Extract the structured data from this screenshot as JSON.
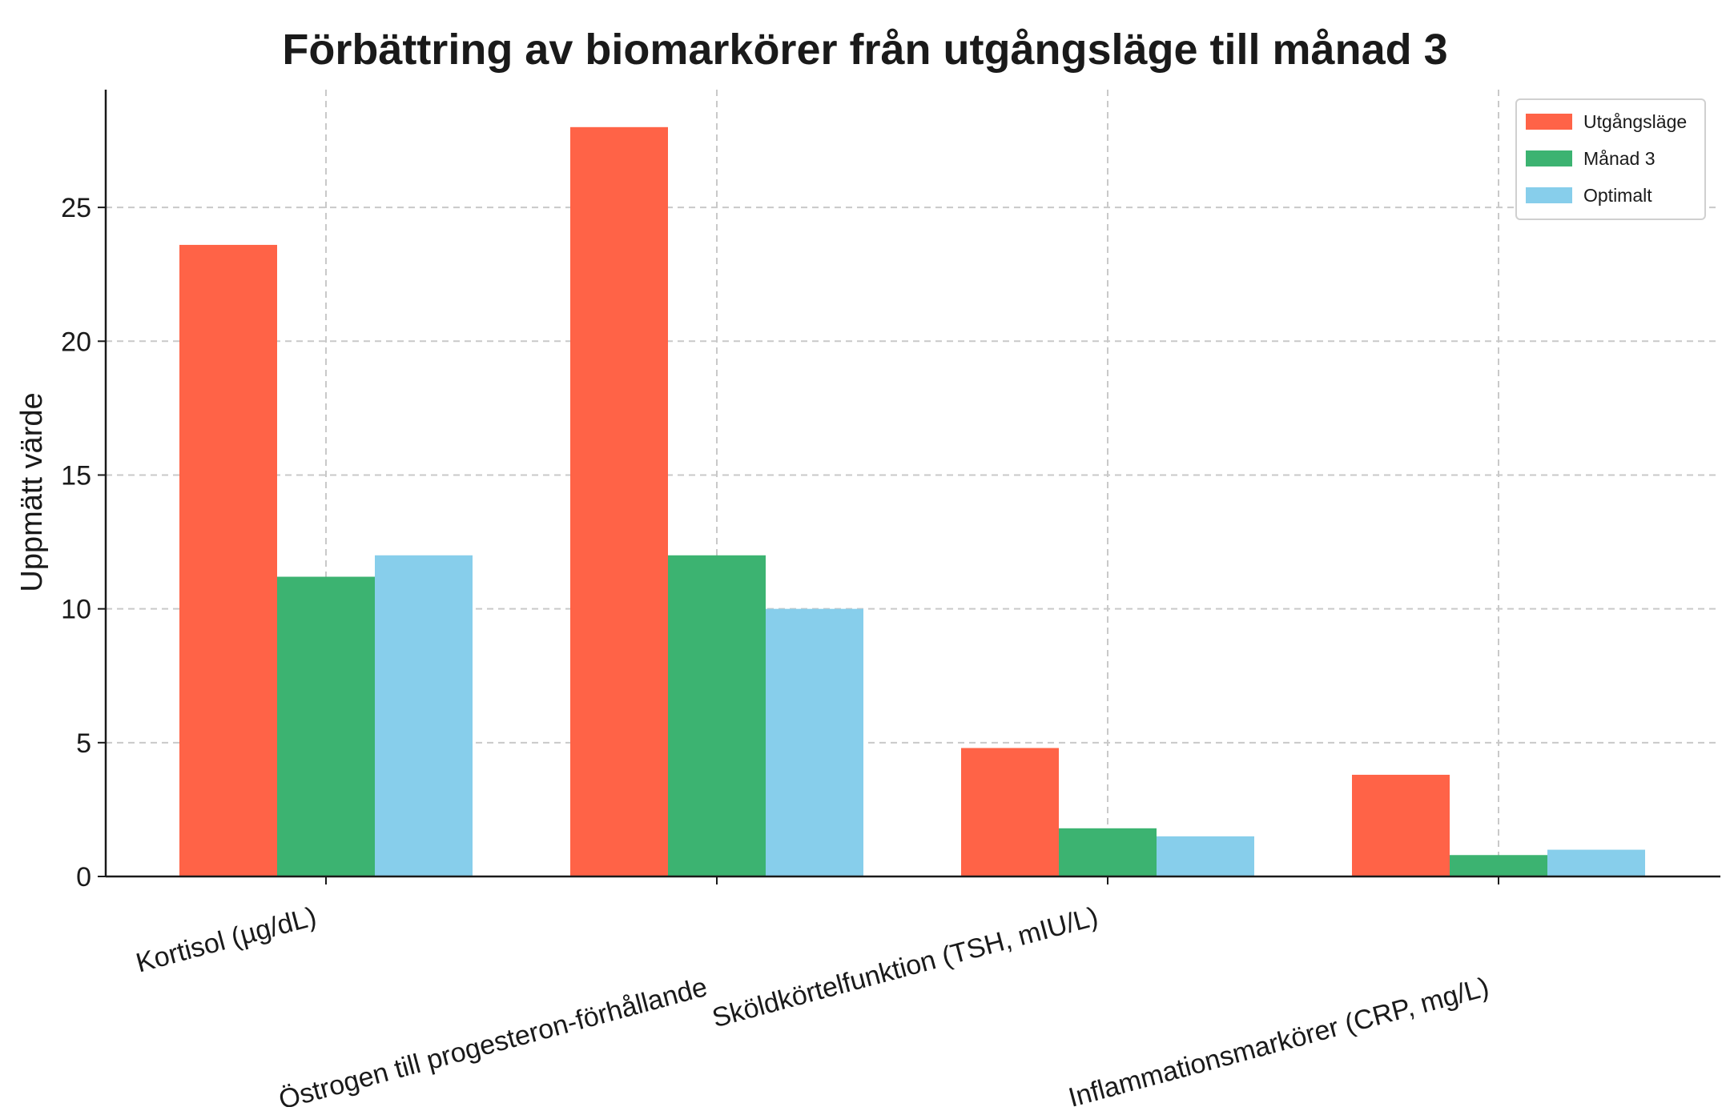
{
  "chart_data": {
    "type": "bar",
    "title": "Förbättring av biomarkörer från utgångsläge till månad 3",
    "ylabel": "Uppmätt värde",
    "xlabel": "",
    "categories": [
      "Kortisol (µg/dL)",
      "Östrogen till progesteron-förhållande",
      "Sköldkörtelfunktion (TSH, mIU/L)",
      "Inflammationsmarkörer (CRP, mg/L)"
    ],
    "series": [
      {
        "name": "Utgångsläge",
        "color": "#FF6347",
        "values": [
          23.6,
          28.0,
          4.8,
          3.8
        ]
      },
      {
        "name": "Månad 3",
        "color": "#3CB371",
        "values": [
          11.2,
          12.0,
          1.8,
          0.8
        ]
      },
      {
        "name": "Optimalt",
        "color": "#87CEEB",
        "values": [
          12.0,
          10.0,
          1.5,
          1.0
        ]
      }
    ],
    "ylim": [
      0,
      29.4
    ],
    "yticks": [
      0,
      5,
      10,
      15,
      20,
      25
    ],
    "grid": true,
    "legend_position": "top-right"
  }
}
